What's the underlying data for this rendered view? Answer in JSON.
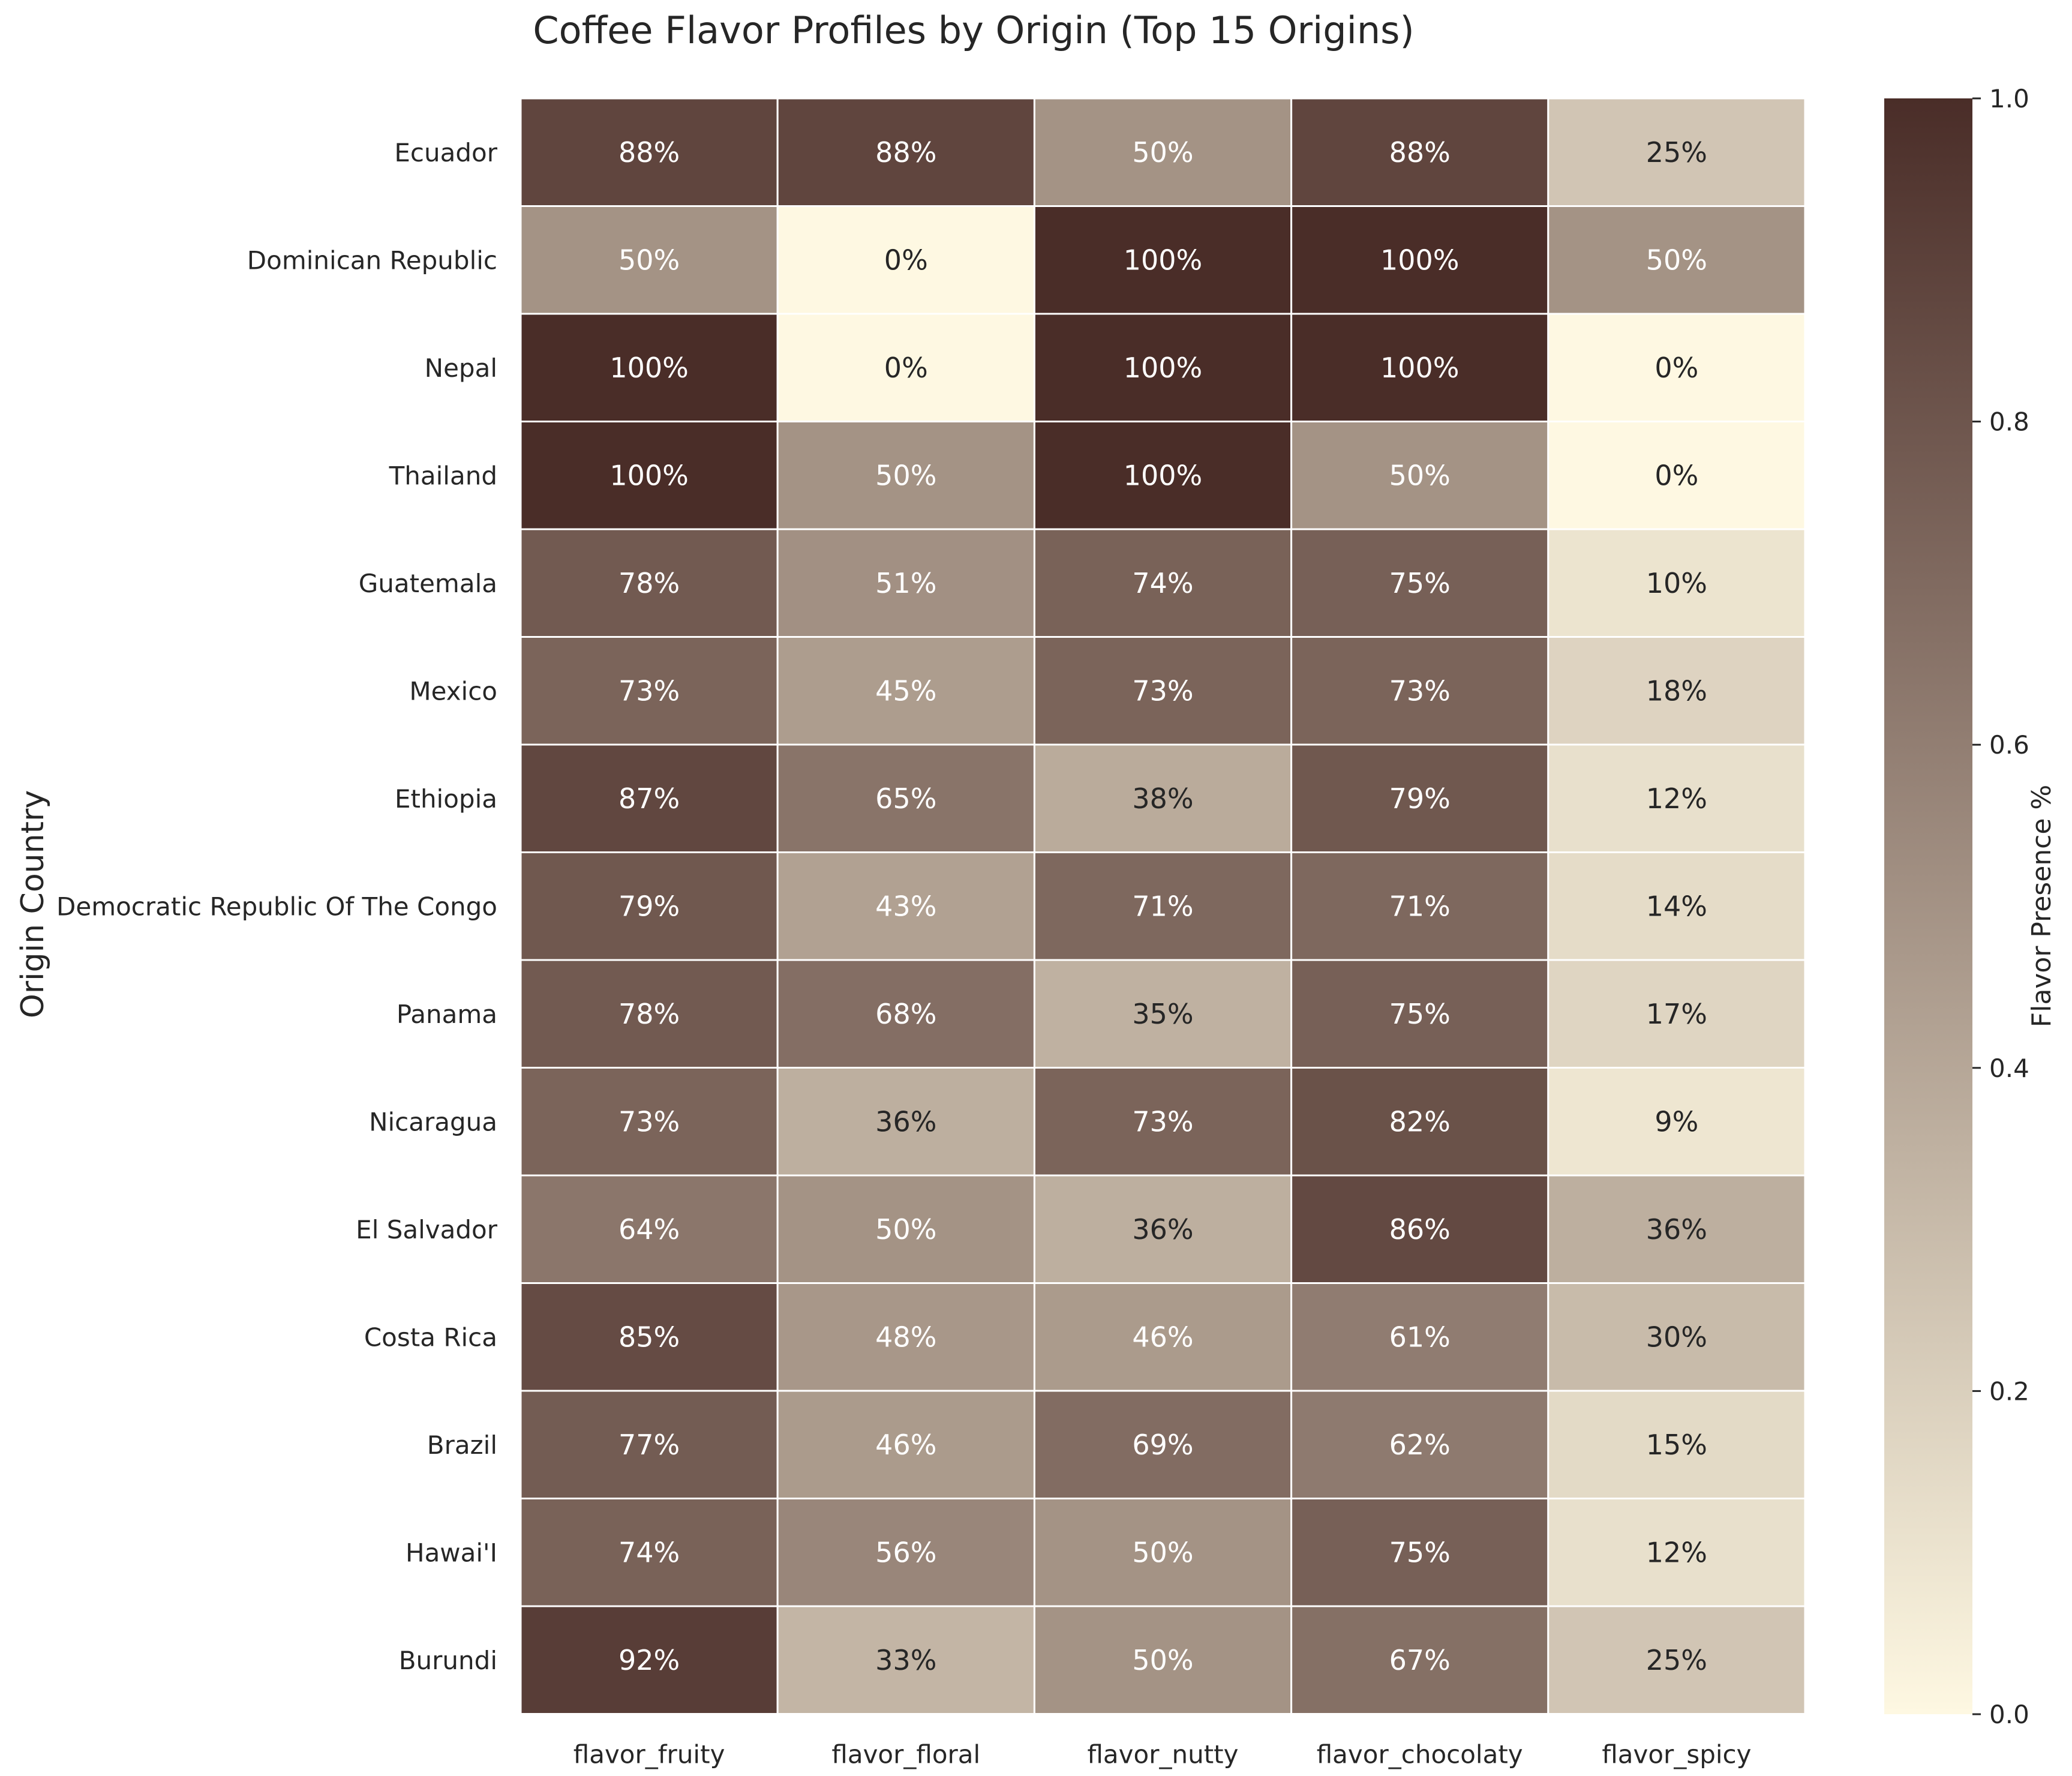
{
  "chart_data": {
    "type": "heatmap",
    "title": "Coffee Flavor Profiles by Origin (Top 15 Origins)",
    "xlabel": "",
    "ylabel": "Origin Country",
    "x_categories": [
      "flavor_fruity",
      "flavor_floral",
      "flavor_nutty",
      "flavor_chocolaty",
      "flavor_spicy"
    ],
    "y_categories": [
      "Ecuador",
      "Dominican Republic",
      "Nepal",
      "Thailand",
      "Guatemala",
      "Mexico",
      "Ethiopia",
      "Democratic Republic Of The Congo",
      "Panama",
      "Nicaragua",
      "El Salvador",
      "Costa Rica",
      "Brazil",
      "Hawai'I",
      "Burundi"
    ],
    "values": [
      [
        0.88,
        0.88,
        0.5,
        0.88,
        0.25
      ],
      [
        0.5,
        0.0,
        1.0,
        1.0,
        0.5
      ],
      [
        1.0,
        0.0,
        1.0,
        1.0,
        0.0
      ],
      [
        1.0,
        0.5,
        1.0,
        0.5,
        0.0
      ],
      [
        0.78,
        0.51,
        0.74,
        0.75,
        0.1
      ],
      [
        0.73,
        0.45,
        0.73,
        0.73,
        0.18
      ],
      [
        0.87,
        0.65,
        0.38,
        0.79,
        0.12
      ],
      [
        0.79,
        0.43,
        0.71,
        0.71,
        0.14
      ],
      [
        0.78,
        0.68,
        0.35,
        0.75,
        0.17
      ],
      [
        0.73,
        0.36,
        0.73,
        0.82,
        0.09
      ],
      [
        0.64,
        0.5,
        0.36,
        0.86,
        0.36
      ],
      [
        0.85,
        0.48,
        0.46,
        0.61,
        0.3
      ],
      [
        0.77,
        0.46,
        0.69,
        0.62,
        0.15
      ],
      [
        0.74,
        0.56,
        0.5,
        0.75,
        0.12
      ],
      [
        0.92,
        0.33,
        0.5,
        0.67,
        0.25
      ]
    ],
    "cell_labels": [
      [
        "88%",
        "88%",
        "50%",
        "88%",
        "25%"
      ],
      [
        "50%",
        "0%",
        "100%",
        "100%",
        "50%"
      ],
      [
        "100%",
        "0%",
        "100%",
        "100%",
        "0%"
      ],
      [
        "100%",
        "50%",
        "100%",
        "50%",
        "0%"
      ],
      [
        "78%",
        "51%",
        "74%",
        "75%",
        "10%"
      ],
      [
        "73%",
        "45%",
        "73%",
        "73%",
        "18%"
      ],
      [
        "87%",
        "65%",
        "38%",
        "79%",
        "12%"
      ],
      [
        "79%",
        "43%",
        "71%",
        "71%",
        "14%"
      ],
      [
        "78%",
        "68%",
        "35%",
        "75%",
        "17%"
      ],
      [
        "73%",
        "36%",
        "73%",
        "82%",
        "9%"
      ],
      [
        "64%",
        "50%",
        "36%",
        "86%",
        "36%"
      ],
      [
        "85%",
        "48%",
        "46%",
        "61%",
        "30%"
      ],
      [
        "77%",
        "46%",
        "69%",
        "62%",
        "15%"
      ],
      [
        "74%",
        "56%",
        "50%",
        "75%",
        "12%"
      ],
      [
        "92%",
        "33%",
        "50%",
        "67%",
        "25%"
      ]
    ],
    "colorbar": {
      "label": "Flavor Presence %",
      "min": 0.0,
      "max": 1.0,
      "ticks": [
        0.0,
        0.2,
        0.4,
        0.6,
        0.8,
        1.0
      ],
      "tick_labels": [
        "0.0",
        "0.2",
        "0.4",
        "0.6",
        "0.8",
        "1.0"
      ],
      "color_low": "#fef8e2",
      "color_high": "#4a2d28"
    },
    "grid": false,
    "cell_border_color": "#ffffff",
    "text_color_light": "#ffffff",
    "text_color_dark": "#262626"
  }
}
